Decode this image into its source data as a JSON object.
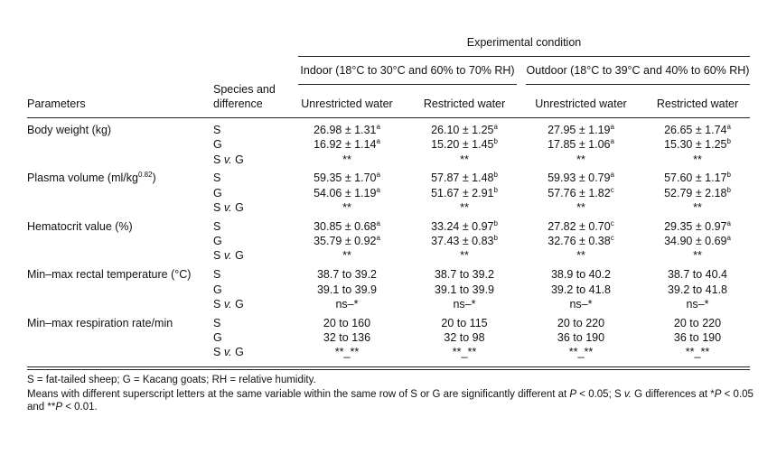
{
  "table": {
    "header": {
      "experimental_condition": "Experimental condition",
      "indoor": "Indoor (18°C to 30°C and 60% to 70% RH)",
      "outdoor": "Outdoor (18°C to 39°C and 40% to 60% RH)",
      "parameters": "Parameters",
      "species_line1": "Species and",
      "species_line2": "difference",
      "unrestricted": "Unrestricted water",
      "restricted": "Restricted water"
    },
    "groups": [
      {
        "name_html": "Body weight (kg)",
        "rows": [
          {
            "sp": "S",
            "cells": [
              "26.98 ± 1.31<sup>a</sup>",
              "26.10 ± 1.25<sup>a</sup>",
              "27.95 ± 1.19<sup>a</sup>",
              "26.65 ± 1.74<sup>a</sup>"
            ]
          },
          {
            "sp": "G",
            "cells": [
              "16.92 ± 1.14<sup>a</sup>",
              "15.20 ± 1.45<sup>b</sup>",
              "17.85 ± 1.06<sup>a</sup>",
              "15.30 ± 1.25<sup>b</sup>"
            ]
          },
          {
            "sp": "S <i>v.</i> G",
            "cells": [
              "**",
              "**",
              "**",
              "**"
            ]
          }
        ]
      },
      {
        "name_html": "Plasma volume (ml/kg<sup>0.82</sup>)",
        "rows": [
          {
            "sp": "S",
            "cells": [
              "59.35 ± 1.70<sup>a</sup>",
              "57.87 ± 1.48<sup>b</sup>",
              "59.93 ± 0.79<sup>a</sup>",
              "57.60 ± 1.17<sup>b</sup>"
            ]
          },
          {
            "sp": "G",
            "cells": [
              "54.06 ± 1.19<sup>a</sup>",
              "51.67 ± 2.91<sup>b</sup>",
              "57.76 ± 1.82<sup>c</sup>",
              "52.79 ± 2.18<sup>b</sup>"
            ]
          },
          {
            "sp": "S <i>v.</i> G",
            "cells": [
              "**",
              "**",
              "**",
              "**"
            ]
          }
        ]
      },
      {
        "name_html": "Hematocrit value (%)",
        "rows": [
          {
            "sp": "S",
            "cells": [
              "30.85 ± 0.68<sup>a</sup>",
              "33.24 ± 0.97<sup>b</sup>",
              "27.82 ± 0.70<sup>c</sup>",
              "29.35 ± 0.97<sup>a</sup>"
            ]
          },
          {
            "sp": "G",
            "cells": [
              "35.79 ± 0.92<sup>a</sup>",
              "37.43 ± 0.83<sup>b</sup>",
              "32.76 ± 0.38<sup>c</sup>",
              "34.90 ± 0.69<sup>a</sup>"
            ]
          },
          {
            "sp": "S <i>v.</i> G",
            "cells": [
              "**",
              "**",
              "**",
              "**"
            ]
          }
        ]
      },
      {
        "name_html": "Min–max rectal temperature (°C)",
        "rows": [
          {
            "sp": "S",
            "cells": [
              "38.7 to 39.2",
              "38.7 to 39.2",
              "38.9 to 40.2",
              "38.7 to 40.4"
            ]
          },
          {
            "sp": "G",
            "cells": [
              "39.1 to 39.9",
              "39.1 to 39.9",
              "39.2 to 41.8",
              "39.2 to 41.8"
            ]
          },
          {
            "sp": "S <i>v.</i> G",
            "cells": [
              "ns–*",
              "ns–*",
              "ns–*",
              "ns–*"
            ]
          }
        ]
      },
      {
        "name_html": "Min–max respiration rate/min",
        "rows": [
          {
            "sp": "S",
            "cells": [
              "20 to 160",
              "20 to 115",
              "20 to 220",
              "20 to 220"
            ]
          },
          {
            "sp": "G",
            "cells": [
              "32 to 136",
              "32 to 98",
              "36 to 190",
              "36 to 190"
            ]
          },
          {
            "sp": "S <i>v.</i> G",
            "cells": [
              "**_**",
              "**_**",
              "**_**",
              "**_**"
            ]
          }
        ]
      }
    ]
  },
  "footnotes": {
    "line1": "S = fat-tailed sheep; G = Kacang goats; RH = relative humidity.",
    "line2_html": "Means with different superscript letters at the same variable within the same row of S or G are significantly different at <i>P</i> &lt; 0.05; S <i>v.</i> G differences at *<i>P</i> &lt; 0.05",
    "line3_html": "and **<i>P</i> &lt; 0.01."
  }
}
